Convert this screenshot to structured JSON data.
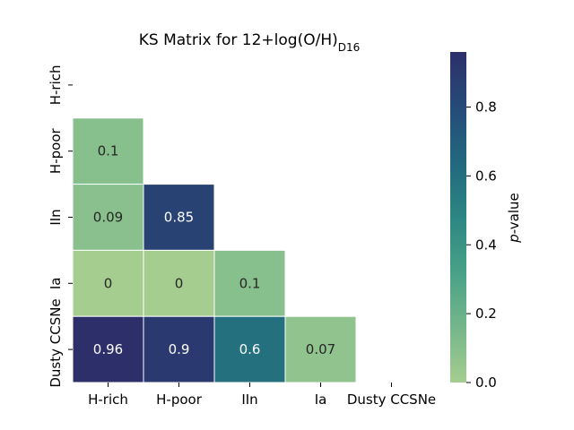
{
  "chart_data": {
    "type": "heatmap",
    "title_main": "KS Matrix for 12+log(O/H)",
    "title_sub": "D16",
    "row_labels": [
      "H-rich",
      "H-poor",
      "IIn",
      "Ia",
      "Dusty CCSNe"
    ],
    "col_labels": [
      "H-rich",
      "H-poor",
      "IIn",
      "Ia",
      "Dusty CCSNe"
    ],
    "mask": "upper-triangle-and-diagonal",
    "cells": [
      {
        "row": 1,
        "col": 0,
        "value": 0.1,
        "label": "0.1"
      },
      {
        "row": 2,
        "col": 0,
        "value": 0.09,
        "label": "0.09"
      },
      {
        "row": 2,
        "col": 1,
        "value": 0.85,
        "label": "0.85"
      },
      {
        "row": 3,
        "col": 0,
        "value": 0.0,
        "label": "0"
      },
      {
        "row": 3,
        "col": 1,
        "value": 0.0,
        "label": "0"
      },
      {
        "row": 3,
        "col": 2,
        "value": 0.1,
        "label": "0.1"
      },
      {
        "row": 4,
        "col": 0,
        "value": 0.96,
        "label": "0.96"
      },
      {
        "row": 4,
        "col": 1,
        "value": 0.9,
        "label": "0.9"
      },
      {
        "row": 4,
        "col": 2,
        "value": 0.6,
        "label": "0.6"
      },
      {
        "row": 4,
        "col": 3,
        "value": 0.07,
        "label": "0.07"
      }
    ],
    "colorbar": {
      "label_italic": "p",
      "label_rest": "-value",
      "vmin": 0.0,
      "vmax": 0.96,
      "ticks": [
        "0.0",
        "0.2",
        "0.4",
        "0.6",
        "0.8"
      ],
      "tick_values": [
        0.0,
        0.2,
        0.4,
        0.6,
        0.8
      ]
    },
    "colormap": "crest",
    "colormap_stops": [
      "#a5cd90",
      "#75b68b",
      "#48a187",
      "#2c8683",
      "#22687e",
      "#264b78",
      "#2c2f6a"
    ]
  }
}
